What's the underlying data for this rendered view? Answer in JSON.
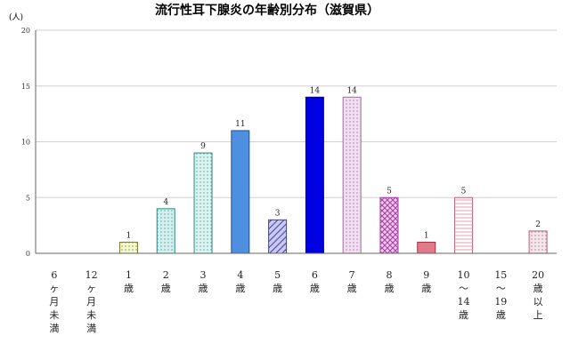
{
  "chart_data": {
    "type": "bar",
    "title": "流行性耳下腺炎の年齢別分布（滋賀県）",
    "ylabel": "(人)",
    "xlabel": "",
    "ylim": [
      0,
      20
    ],
    "yticks": [
      0,
      5,
      10,
      15,
      20
    ],
    "categories": [
      "6ヶ月未満",
      "12ヶ月未満",
      "1歳",
      "2歳",
      "3歳",
      "4歳",
      "5歳",
      "6歳",
      "7歳",
      "8歳",
      "9歳",
      "10〜14歳",
      "15〜19歳",
      "20歳以上"
    ],
    "category_lines": [
      [
        "6",
        "ヶ",
        "月",
        "未",
        "満"
      ],
      [
        "12",
        "ヶ",
        "月",
        "未",
        "満"
      ],
      [
        "1",
        "歳"
      ],
      [
        "2",
        "歳"
      ],
      [
        "3",
        "歳"
      ],
      [
        "4",
        "歳"
      ],
      [
        "5",
        "歳"
      ],
      [
        "6",
        "歳"
      ],
      [
        "7",
        "歳"
      ],
      [
        "8",
        "歳"
      ],
      [
        "9",
        "歳"
      ],
      [
        "10",
        "〜",
        "14",
        "歳"
      ],
      [
        "15",
        "〜",
        "19",
        "歳"
      ],
      [
        "20",
        "歳",
        "以",
        "上"
      ]
    ],
    "values": [
      0,
      0,
      1,
      4,
      9,
      11,
      3,
      14,
      14,
      5,
      1,
      5,
      0,
      2
    ],
    "data_labels": [
      "",
      "",
      "1",
      "4",
      "9",
      "11",
      "3",
      "14",
      "14",
      "5",
      "1",
      "5",
      "",
      "2"
    ],
    "grid": true,
    "bar_colors": [
      "#ffffff",
      "#ffffff",
      "#f4f7c8",
      "#cdf2f0",
      "#d6f6f3",
      "#4e8fe0",
      "#c8c8f0",
      "#0000e0",
      "#f4dcf4",
      "#f0c8ec",
      "#e07a88",
      "#ffffff",
      "#ffffff",
      "#f7e4ec"
    ],
    "bar_patterns": [
      "none",
      "none",
      "dots",
      "dots",
      "dots",
      "none",
      "hatch",
      "none",
      "dots",
      "cross",
      "none",
      "hstripe",
      "none",
      "dots"
    ],
    "bar_stroke": [
      "#999",
      "#999",
      "#7a7a30",
      "#2c8a86",
      "#2c8a86",
      "#1a4fa0",
      "#4040a0",
      "#000080",
      "#b060b0",
      "#a040a0",
      "#a03040",
      "#c06070",
      "#999",
      "#c06070"
    ]
  }
}
